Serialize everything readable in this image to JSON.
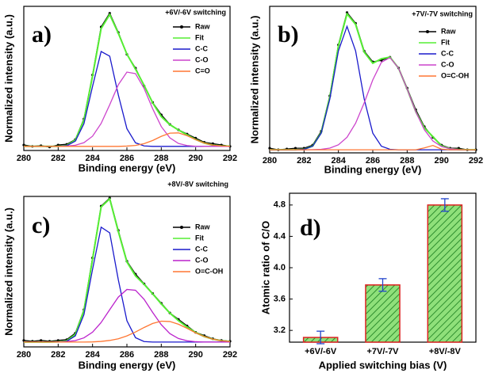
{
  "chart_data": [
    {
      "type": "line",
      "panel_label": "a)",
      "annotation": "+6V/-6V switching",
      "xlabel": "Binding energy (eV)",
      "ylabel": "Normalized intensity (a.u.)",
      "x": [
        280,
        280.5,
        281,
        281.5,
        282,
        282.5,
        283,
        283.5,
        284,
        284.5,
        285,
        285.5,
        286,
        286.5,
        287,
        287.5,
        288,
        288.5,
        289,
        289.5,
        290,
        290.5,
        291,
        291.5,
        292
      ],
      "xlim": [
        280,
        292
      ],
      "xticks": [
        280,
        282,
        284,
        286,
        288,
        290,
        292
      ],
      "ylim": [
        0,
        1.05
      ],
      "legend": "upper right",
      "series": [
        {
          "name": "Raw",
          "color": "#000000",
          "marker": true,
          "values": [
            0.04,
            0.03,
            0.035,
            0.025,
            0.04,
            0.045,
            0.08,
            0.23,
            0.55,
            0.9,
            1.0,
            0.86,
            0.7,
            0.6,
            0.47,
            0.35,
            0.26,
            0.19,
            0.15,
            0.12,
            0.09,
            0.06,
            0.05,
            0.04,
            0.03
          ]
        },
        {
          "name": "Fit",
          "color": "#55ee33",
          "values": [
            0.03,
            0.03,
            0.03,
            0.03,
            0.03,
            0.037,
            0.076,
            0.222,
            0.541,
            0.888,
            0.99,
            0.854,
            0.702,
            0.593,
            0.475,
            0.347,
            0.247,
            0.188,
            0.149,
            0.114,
            0.08,
            0.054,
            0.039,
            0.033,
            0.031
          ]
        },
        {
          "name": "C-C",
          "color": "#1a1acc",
          "values": [
            0.03,
            0.03,
            0.03,
            0.03,
            0.03,
            0.035,
            0.068,
            0.195,
            0.467,
            0.721,
            0.687,
            0.405,
            0.159,
            0.056,
            0.033,
            0.03,
            0.03,
            0.03,
            0.03,
            0.03,
            0.03,
            0.03,
            0.03,
            0.03,
            0.03
          ]
        },
        {
          "name": "C-O",
          "color": "#cc44cc",
          "values": [
            0.03,
            0.03,
            0.03,
            0.03,
            0.03,
            0.032,
            0.038,
            0.057,
            0.104,
            0.197,
            0.333,
            0.479,
            0.571,
            0.56,
            0.452,
            0.304,
            0.174,
            0.092,
            0.051,
            0.036,
            0.031,
            0.03,
            0.03,
            0.03,
            0.03
          ]
        },
        {
          "name": "C=O",
          "color": "#ff7733",
          "values": [
            0.03,
            0.03,
            0.03,
            0.03,
            0.03,
            0.03,
            0.03,
            0.03,
            0.03,
            0.03,
            0.03,
            0.03,
            0.032,
            0.037,
            0.05,
            0.073,
            0.103,
            0.126,
            0.128,
            0.108,
            0.079,
            0.054,
            0.039,
            0.033,
            0.031
          ]
        }
      ]
    },
    {
      "type": "line",
      "panel_label": "b)",
      "annotation": "+7V/-7V switching",
      "xlabel": "Binding energy (eV)",
      "ylabel": "Normalized intensity (a.u.)",
      "x": [
        280,
        280.5,
        281,
        281.5,
        282,
        282.5,
        283,
        283.5,
        284,
        284.5,
        285,
        285.5,
        286,
        286.5,
        287,
        287.5,
        288,
        288.5,
        289,
        289.5,
        290,
        290.5,
        291,
        291.5,
        292
      ],
      "xlim": [
        280,
        292
      ],
      "xticks": [
        280,
        282,
        284,
        286,
        288,
        290,
        292
      ],
      "ylim": [
        0,
        0.95
      ],
      "legend": "upper right",
      "series": [
        {
          "name": "Raw",
          "color": "#000000",
          "marker": true,
          "values": [
            0.03,
            0.02,
            0.025,
            0.03,
            0.03,
            0.05,
            0.14,
            0.37,
            0.7,
            0.91,
            0.84,
            0.66,
            0.59,
            0.6,
            0.62,
            0.55,
            0.42,
            0.28,
            0.17,
            0.1,
            0.05,
            0.03,
            0.03,
            0.02,
            0.02
          ]
        },
        {
          "name": "Fit",
          "color": "#55ee33",
          "values": [
            0.02,
            0.02,
            0.02,
            0.02,
            0.023,
            0.044,
            0.131,
            0.36,
            0.693,
            0.901,
            0.833,
            0.653,
            0.581,
            0.61,
            0.621,
            0.549,
            0.414,
            0.267,
            0.162,
            0.105,
            0.045,
            0.027,
            0.022,
            0.02,
            0.02
          ]
        },
        {
          "name": "C-C",
          "color": "#1a1acc",
          "values": [
            0.02,
            0.02,
            0.02,
            0.02,
            0.023,
            0.043,
            0.128,
            0.349,
            0.661,
            0.82,
            0.661,
            0.349,
            0.128,
            0.043,
            0.023,
            0.02,
            0.02,
            0.02,
            0.02,
            0.02,
            0.02,
            0.02,
            0.02,
            0.02,
            0.02
          ]
        },
        {
          "name": "C-O",
          "color": "#cc44cc",
          "values": [
            0.02,
            0.02,
            0.02,
            0.02,
            0.02,
            0.021,
            0.023,
            0.031,
            0.052,
            0.101,
            0.192,
            0.324,
            0.473,
            0.587,
            0.618,
            0.549,
            0.414,
            0.267,
            0.15,
            0.077,
            0.041,
            0.027,
            0.022,
            0.02,
            0.02
          ]
        },
        {
          "name": "O=C-OH",
          "color": "#ff7733",
          "values": [
            0.02,
            0.02,
            0.02,
            0.02,
            0.02,
            0.02,
            0.02,
            0.02,
            0.02,
            0.02,
            0.02,
            0.02,
            0.02,
            0.02,
            0.02,
            0.02,
            0.02,
            0.02,
            0.032,
            0.048,
            0.024,
            0.02,
            0.02,
            0.02,
            0.02
          ]
        }
      ]
    },
    {
      "type": "line",
      "panel_label": "c)",
      "annotation": "+8V/-8V switching",
      "xlabel": "Binding energy (eV)",
      "ylabel": "Normalized intensity (a.u.)",
      "x": [
        280,
        280.5,
        281,
        281.5,
        282,
        282.5,
        283,
        283.5,
        284,
        284.5,
        285,
        285.5,
        286,
        286.5,
        287,
        287.5,
        288,
        288.5,
        289,
        289.5,
        290,
        290.5,
        291,
        291.5,
        292
      ],
      "xlim": [
        280,
        292
      ],
      "xticks": [
        280,
        282,
        284,
        286,
        288,
        290,
        292
      ],
      "ylim": [
        0,
        0.93
      ],
      "legend": "upper right",
      "series": [
        {
          "name": "Raw",
          "color": "#000000",
          "marker": true,
          "values": [
            0.04,
            0.035,
            0.04,
            0.035,
            0.04,
            0.045,
            0.085,
            0.23,
            0.55,
            0.87,
            0.92,
            0.72,
            0.53,
            0.45,
            0.39,
            0.33,
            0.27,
            0.21,
            0.17,
            0.13,
            0.09,
            0.07,
            0.05,
            0.04,
            0.035
          ]
        },
        {
          "name": "Fit",
          "color": "#55ee33",
          "values": [
            0.03,
            0.03,
            0.03,
            0.03,
            0.031,
            0.038,
            0.077,
            0.226,
            0.541,
            0.865,
            0.915,
            0.713,
            0.525,
            0.439,
            0.387,
            0.328,
            0.266,
            0.209,
            0.162,
            0.123,
            0.089,
            0.064,
            0.048,
            0.038,
            0.033
          ]
        },
        {
          "name": "C-C",
          "color": "#1a1acc",
          "values": [
            0.03,
            0.03,
            0.03,
            0.03,
            0.03,
            0.035,
            0.068,
            0.2,
            0.479,
            0.74,
            0.705,
            0.415,
            0.162,
            0.057,
            0.033,
            0.03,
            0.03,
            0.03,
            0.03,
            0.03,
            0.03,
            0.03,
            0.03,
            0.03,
            0.03
          ]
        },
        {
          "name": "C-O",
          "color": "#bb22cc",
          "values": [
            0.03,
            0.03,
            0.03,
            0.03,
            0.031,
            0.033,
            0.039,
            0.056,
            0.091,
            0.151,
            0.23,
            0.308,
            0.355,
            0.35,
            0.294,
            0.213,
            0.137,
            0.082,
            0.052,
            0.038,
            0.032,
            0.03,
            0.03,
            0.03,
            0.03
          ]
        },
        {
          "name": "O=C-OH",
          "color": "#ff7733",
          "values": [
            0.03,
            0.03,
            0.03,
            0.03,
            0.03,
            0.03,
            0.03,
            0.03,
            0.031,
            0.034,
            0.04,
            0.05,
            0.068,
            0.092,
            0.12,
            0.145,
            0.159,
            0.157,
            0.14,
            0.115,
            0.087,
            0.064,
            0.048,
            0.038,
            0.033
          ]
        }
      ]
    },
    {
      "type": "bar",
      "panel_label": "d)",
      "xlabel": "Applied switching bias (V)",
      "ylabel": "Atomic ratio of C/O",
      "categories": [
        "+6V/-6V",
        "+7V/-7V",
        "+8V/-8V"
      ],
      "values": [
        3.11,
        3.78,
        4.8
      ],
      "errors": [
        0.08,
        0.08,
        0.08
      ],
      "color": "#8fe07a",
      "edgecolor": "#dd2222",
      "error_color": "#2244cc",
      "ylim": [
        3.05,
        4.95
      ],
      "yticks": [
        3.2,
        3.6,
        {
          "value": 4,
          "label": "4.0"
        },
        4.4,
        4.8
      ]
    }
  ]
}
